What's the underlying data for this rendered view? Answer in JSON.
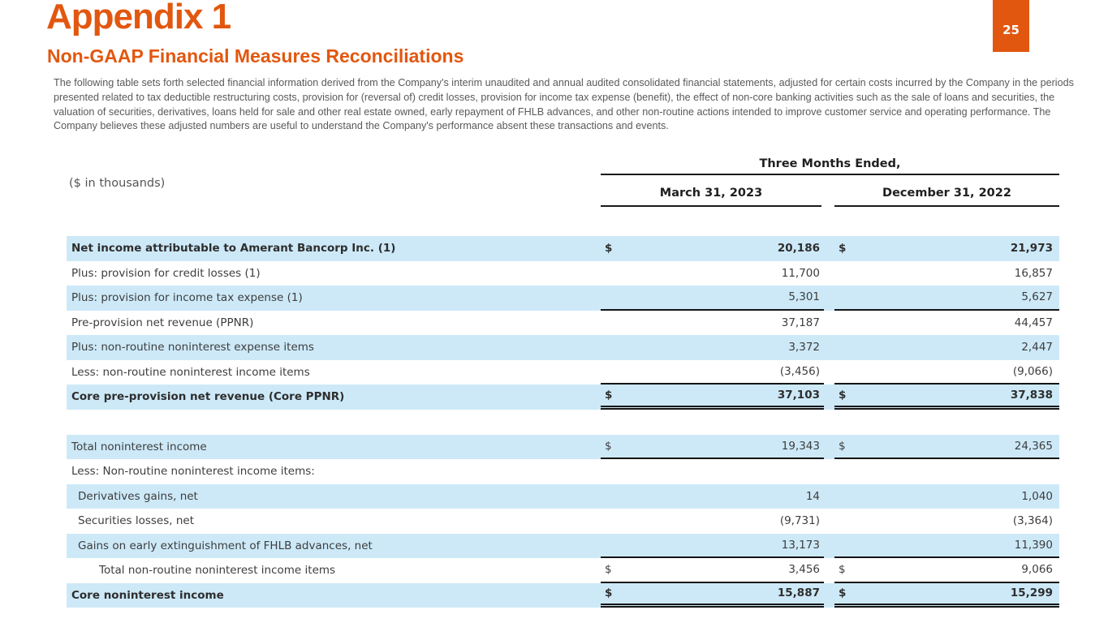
{
  "page": {
    "title": "Appendix 1",
    "subtitle": "Non-GAAP Financial Measures Reconciliations",
    "page_number": "25",
    "intro": "The following table sets forth selected financial information derived from the Company's interim unaudited and annual audited consolidated financial statements, adjusted for certain costs incurred by the Company in the periods presented related to tax deductible restructuring costs, provision for (reversal of) credit losses, provision for income tax expense (benefit), the effect of non-core banking activities such as the sale of loans and securities, the valuation of securities, derivatives, loans held for sale and other real estate owned, early repayment of FHLB advances, and other non-routine actions intended to improve customer service and operating performance. The Company believes these adjusted numbers are useful to understand the Company's performance absent these transactions and events.",
    "colors": {
      "accent_orange": "#E2570F",
      "row_shade_blue": "#CDE9F8",
      "rule_black": "#141414",
      "body_gray": "#595959"
    }
  },
  "table": {
    "units_label": "($ in thousands)",
    "span_header": "Three Months Ended,",
    "column_headers": [
      "March 31, 2023",
      "December 31, 2022"
    ],
    "currency_symbol": "$",
    "rows": [
      {
        "label": "Net income attributable to Amerant Bancorp Inc. (1)",
        "bold": true,
        "shade": true,
        "dollar": true,
        "indent": 0,
        "v1": "20,186",
        "v2": "21,973",
        "border": "none"
      },
      {
        "label": "Plus: provision for credit losses (1)",
        "bold": false,
        "shade": false,
        "dollar": false,
        "indent": 0,
        "v1": "11,700",
        "v2": "16,857",
        "border": "none"
      },
      {
        "label": "Plus: provision for income tax expense (1)",
        "bold": false,
        "shade": true,
        "dollar": false,
        "indent": 0,
        "v1": "5,301",
        "v2": "5,627",
        "border": "single"
      },
      {
        "label": "Pre-provision net revenue (PPNR)",
        "bold": false,
        "shade": false,
        "dollar": false,
        "indent": 0,
        "v1": "37,187",
        "v2": "44,457",
        "border": "none"
      },
      {
        "label": "Plus: non-routine noninterest expense items",
        "bold": false,
        "shade": true,
        "dollar": false,
        "indent": 0,
        "v1": "3,372",
        "v2": "2,447",
        "border": "none"
      },
      {
        "label": "Less: non-routine noninterest income items",
        "bold": false,
        "shade": false,
        "dollar": false,
        "indent": 0,
        "v1": "(3,456)",
        "v2": "(9,066)",
        "border": "single"
      },
      {
        "label": "Core pre-provision net revenue (Core PPNR)",
        "bold": true,
        "shade": true,
        "dollar": true,
        "indent": 0,
        "v1": "37,103",
        "v2": "37,838",
        "border": "double"
      },
      {
        "gap": true
      },
      {
        "label": "Total noninterest income",
        "bold": false,
        "shade": true,
        "dollar": true,
        "indent": 0,
        "v1": "19,343",
        "v2": "24,365",
        "border": "single"
      },
      {
        "label": "Less: Non-routine noninterest income items:",
        "bold": false,
        "shade": false,
        "dollar": false,
        "indent": 0,
        "v1": "",
        "v2": "",
        "border": "none"
      },
      {
        "label": "Derivatives gains, net",
        "bold": false,
        "shade": true,
        "dollar": false,
        "indent": 1,
        "v1": "14",
        "v2": "1,040",
        "border": "none"
      },
      {
        "label": "Securities losses, net",
        "bold": false,
        "shade": false,
        "dollar": false,
        "indent": 1,
        "v1": "(9,731)",
        "v2": "(3,364)",
        "border": "none"
      },
      {
        "label": "Gains on early extinguishment of FHLB advances, net",
        "bold": false,
        "shade": true,
        "dollar": false,
        "indent": 1,
        "v1": "13,173",
        "v2": "11,390",
        "border": "single"
      },
      {
        "label": "Total non-routine noninterest income items",
        "bold": false,
        "shade": false,
        "dollar": true,
        "indent": 2,
        "v1": "3,456",
        "v2": "9,066",
        "border": "single"
      },
      {
        "label": "Core noninterest income",
        "bold": true,
        "shade": true,
        "dollar": true,
        "indent": 0,
        "v1": "15,887",
        "v2": "15,299",
        "border": "double"
      }
    ]
  }
}
